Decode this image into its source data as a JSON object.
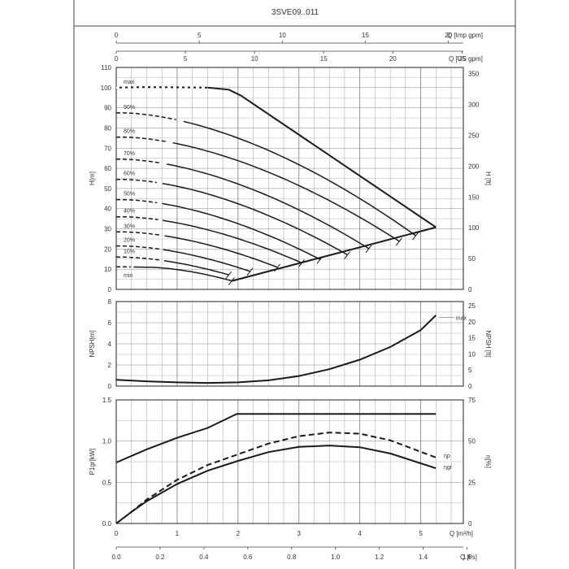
{
  "title": "3SVE09..011",
  "colors": {
    "line": "#1a1a1a",
    "grid": "#888888",
    "text": "#333333"
  },
  "chart_data": [
    {
      "type": "line",
      "name": "head",
      "ylabel_left": "H[m]",
      "ylabel_right": "H [ft]",
      "xlabel_top1": "Q [Imp gpm]",
      "xlabel_top2": "Q [US gpm]",
      "xlim": [
        0,
        5.7
      ],
      "ylim": [
        0,
        110
      ],
      "y2lim": [
        0,
        360
      ],
      "yticks": [
        0,
        10,
        20,
        30,
        40,
        50,
        60,
        70,
        80,
        90,
        100,
        110
      ],
      "y2ticks": [
        0,
        50,
        100,
        150,
        200,
        250,
        300,
        350
      ],
      "top1_ticks": [
        0,
        5,
        10,
        15,
        20
      ],
      "top2_ticks": [
        0,
        5,
        10,
        15,
        20,
        25
      ],
      "grid": true,
      "speed_curves": [
        {
          "label": "max",
          "H0": 100,
          "Hknee": 99,
          "Qknee": 1.85,
          "Qend": 5.25,
          "Hend": 30.8
        },
        {
          "label": "90%",
          "H0": 87.5,
          "Hknee": 87.5,
          "Qknee": 0.1,
          "Qend": 4.92,
          "Hend": 26.6
        },
        {
          "label": "80%",
          "H0": 75.5,
          "Hknee": 75.5,
          "Qknee": 0.1,
          "Qend": 4.65,
          "Hend": 23.8
        },
        {
          "label": "70%",
          "H0": 64.5,
          "Hknee": 64.5,
          "Qknee": 0.1,
          "Qend": 4.15,
          "Hend": 20.2
        },
        {
          "label": "60%",
          "H0": 54.5,
          "Hknee": 54.5,
          "Qknee": 0.1,
          "Qend": 3.8,
          "Hend": 17.1
        },
        {
          "label": "50%",
          "H0": 44.5,
          "Hknee": 44.5,
          "Qknee": 0.1,
          "Qend": 3.35,
          "Hend": 14.8
        },
        {
          "label": "40%",
          "H0": 36,
          "Hknee": 36,
          "Qknee": 0.1,
          "Qend": 3.05,
          "Hend": 13.1
        },
        {
          "label": "30%",
          "H0": 28.5,
          "Hknee": 28.5,
          "Qknee": 0.1,
          "Qend": 2.65,
          "Hend": 10.9
        },
        {
          "label": "20%",
          "H0": 21.5,
          "Hknee": 21.5,
          "Qknee": 0.1,
          "Qend": 2.2,
          "Hend": 8.9
        },
        {
          "label": "10%",
          "H0": 16,
          "Hknee": 16,
          "Qknee": 0.1,
          "Qend": 1.85,
          "Hend": 7.2
        },
        {
          "label": "min",
          "H0": 11.2,
          "Hknee": 11,
          "Qknee": 0.5,
          "Qend": 1.9,
          "Hend": 4.2
        }
      ],
      "dashed_until": [
        1.9,
        1.0,
        0.85,
        0.8,
        0.75,
        0.75,
        0.75,
        0.75,
        0.75,
        0.75,
        0.28
      ],
      "envelope_bottom": [
        [
          1.9,
          4.2
        ],
        [
          5.25,
          30.8
        ]
      ]
    },
    {
      "type": "line",
      "name": "npsh",
      "ylabel_left": "NPSH[m]",
      "ylabel_right": "NPSH [ft]",
      "xlim": [
        0,
        5.7
      ],
      "ylim": [
        0,
        8
      ],
      "y2lim": [
        0,
        26.25
      ],
      "yticks": [
        0,
        2,
        4,
        6,
        8
      ],
      "y2ticks": [
        0,
        5,
        10,
        15,
        20,
        25
      ],
      "grid": true,
      "series": [
        {
          "name": "max",
          "x": [
            0,
            0.5,
            1.0,
            1.5,
            2.0,
            2.5,
            3.0,
            3.5,
            4.0,
            4.5,
            5.0,
            5.25
          ],
          "values": [
            0.6,
            0.45,
            0.35,
            0.3,
            0.35,
            0.55,
            0.95,
            1.6,
            2.5,
            3.7,
            5.3,
            6.7
          ]
        }
      ]
    },
    {
      "type": "line",
      "name": "power-efficiency",
      "ylabel_left": "P1gr[kW]",
      "ylabel_right": "η[%]",
      "xlabel_m3h": "Q [m³/h]",
      "xlabel_ls": "Q [l/s]",
      "xlim": [
        0,
        5.7
      ],
      "ylim": [
        0,
        1.5
      ],
      "y2lim": [
        0,
        75
      ],
      "yticks": [
        0.0,
        0.5,
        1.0,
        1.5
      ],
      "y2ticks": [
        0,
        25,
        50,
        75
      ],
      "xticks_m3h": [
        0,
        1,
        2,
        3,
        4,
        5
      ],
      "xticks_ls": [
        0.0,
        0.2,
        0.4,
        0.6,
        0.8,
        1.0,
        1.2,
        1.4,
        1.6
      ],
      "xtick_labels_ls": [
        "0.0",
        "0.2",
        "0.4",
        "0.6",
        "0.8",
        "1.0",
        "1.2",
        "1.4",
        "1.6"
      ],
      "grid": true,
      "series": [
        {
          "name": "P1gr",
          "x": [
            0,
            0.5,
            1.0,
            1.5,
            1.98,
            2.5,
            3.0,
            3.5,
            4.0,
            4.5,
            5.0,
            5.25
          ],
          "values": [
            0.74,
            0.9,
            1.04,
            1.16,
            1.33,
            1.33,
            1.33,
            1.33,
            1.33,
            1.33,
            1.33,
            1.33
          ]
        },
        {
          "name": "ηp",
          "x": [
            0,
            0.25,
            0.5,
            1.0,
            1.5,
            2.0,
            2.5,
            3.0,
            3.5,
            4.0,
            4.5,
            5.0,
            5.25
          ],
          "values": [
            0,
            7,
            14.5,
            26.5,
            35.5,
            42,
            48.5,
            53,
            55.2,
            54.5,
            50.5,
            43.5,
            40
          ]
        },
        {
          "name": "ηgr",
          "x": [
            0,
            0.25,
            0.5,
            1.0,
            1.5,
            2.0,
            2.5,
            3.0,
            3.5,
            4.0,
            4.5,
            5.0,
            5.25
          ],
          "values": [
            0,
            7,
            13.5,
            24,
            32,
            38,
            43.3,
            46.5,
            47.3,
            46.3,
            42.5,
            36.5,
            33.5
          ]
        }
      ],
      "series_labels": [
        "ηp",
        "ηgr"
      ]
    }
  ]
}
